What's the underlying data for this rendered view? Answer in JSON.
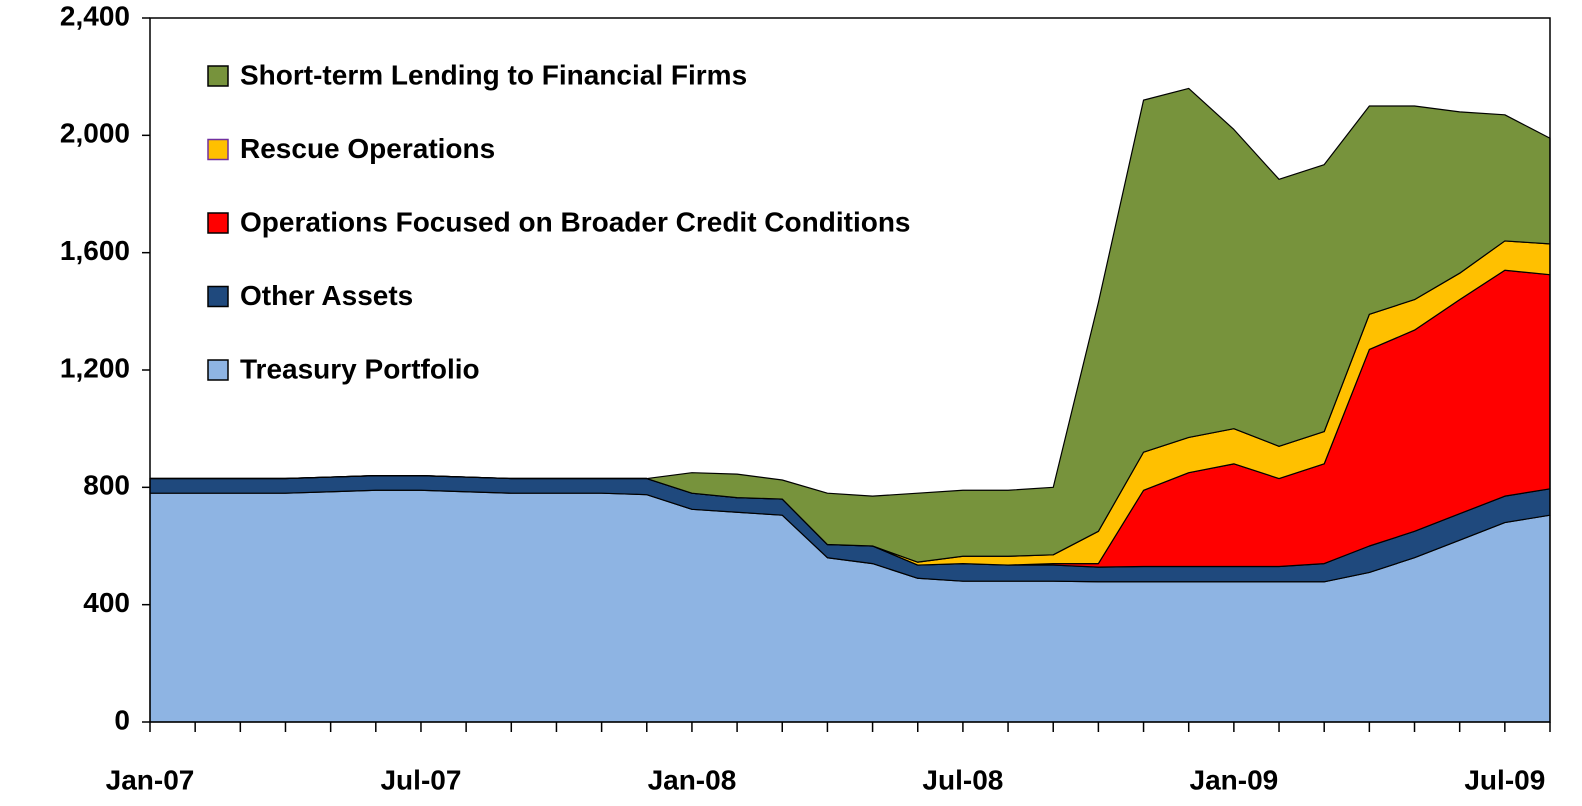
{
  "chart_data": {
    "type": "stacked-area",
    "categories": [
      "Jan-07",
      null,
      null,
      null,
      null,
      null,
      "Jul-07",
      null,
      null,
      null,
      null,
      null,
      "Jan-08",
      null,
      null,
      null,
      null,
      null,
      "Jul-08",
      null,
      null,
      null,
      null,
      null,
      "Jan-09",
      null,
      null,
      null,
      null,
      null,
      "Jul-09",
      null
    ],
    "series": [
      {
        "name": "Treasury Portfolio",
        "color": "#8eb4e3",
        "values": [
          780,
          780,
          780,
          780,
          785,
          790,
          790,
          785,
          780,
          780,
          780,
          775,
          725,
          715,
          705,
          560,
          540,
          490,
          480,
          480,
          480,
          478,
          478,
          478,
          478,
          478,
          478,
          510,
          560,
          620,
          680,
          705
        ]
      },
      {
        "name": "Other Assets",
        "color": "#1f497d",
        "values": [
          50,
          50,
          50,
          50,
          50,
          50,
          50,
          50,
          50,
          50,
          50,
          55,
          55,
          50,
          55,
          45,
          60,
          45,
          60,
          55,
          55,
          50,
          52,
          52,
          52,
          52,
          62,
          90,
          90,
          90,
          90,
          90
        ]
      },
      {
        "name": "Operations Focused on Broader Credit Conditions",
        "color": "#ff0000",
        "values": [
          0,
          0,
          0,
          0,
          0,
          0,
          0,
          0,
          0,
          0,
          0,
          0,
          0,
          0,
          0,
          0,
          0,
          0,
          0,
          0,
          5,
          12,
          260,
          320,
          350,
          300,
          340,
          670,
          686,
          730,
          770,
          730
        ]
      },
      {
        "name": "Rescue Operations",
        "color": "#ffc000",
        "values": [
          0,
          0,
          0,
          0,
          0,
          0,
          0,
          0,
          0,
          0,
          0,
          0,
          0,
          0,
          0,
          0,
          0,
          10,
          25,
          30,
          30,
          110,
          130,
          120,
          120,
          110,
          110,
          120,
          104,
          90,
          100,
          105
        ]
      },
      {
        "name": "Short-term Lending to Financial Firms",
        "color": "#77933c",
        "values": [
          0,
          0,
          0,
          0,
          0,
          0,
          0,
          0,
          0,
          0,
          0,
          0,
          70,
          80,
          65,
          175,
          170,
          235,
          225,
          225,
          230,
          780,
          1200,
          1190,
          1020,
          910,
          910,
          710,
          660,
          550,
          430,
          360
        ]
      }
    ],
    "ylim": [
      0,
      2400
    ],
    "yticks": [
      0,
      400,
      800,
      {
        "value": 1200,
        "label": "1,200"
      },
      {
        "value": 1600,
        "label": "1,600"
      },
      {
        "value": 2000,
        "label": "2,000"
      },
      {
        "value": 2400,
        "label": "2,400"
      }
    ],
    "legend": "top-left"
  }
}
